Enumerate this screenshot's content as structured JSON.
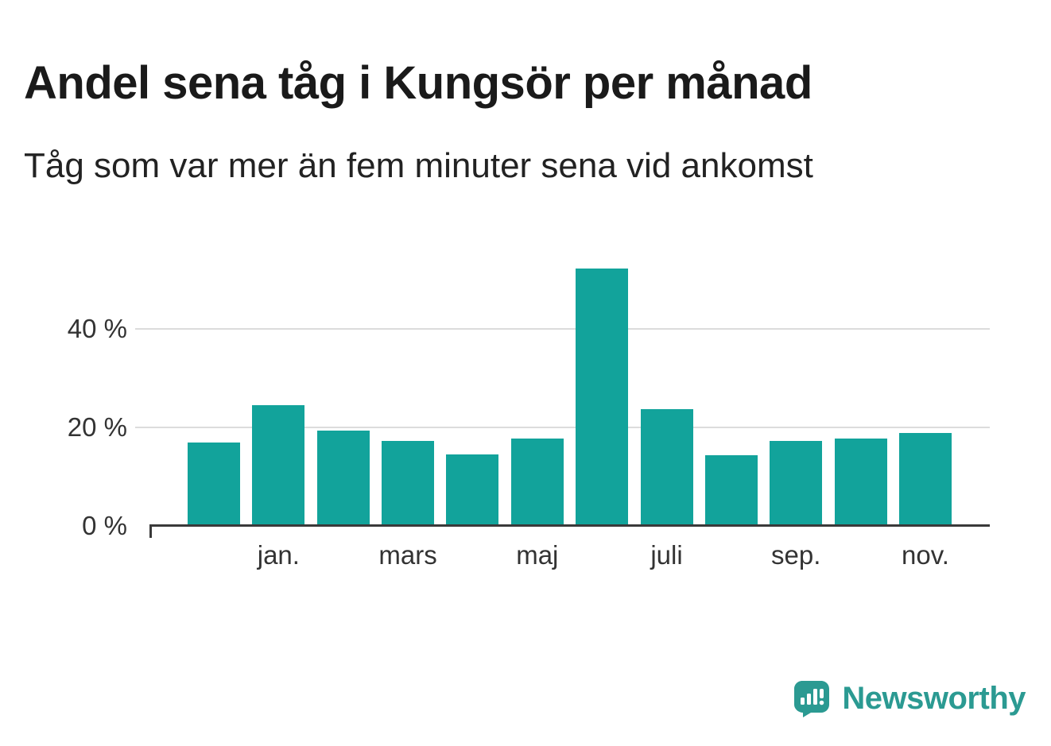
{
  "brand": {
    "name": "Newsworthy",
    "color": "#2b9a92"
  },
  "colors": {
    "bar": "#12a39b",
    "grid": "#dcdcdc",
    "axis": "#3a3a3a",
    "title_text": "#1a1a1a",
    "subtitle_text": "#222222",
    "axis_text": "#333333",
    "background": "#ffffff"
  },
  "chart_data": {
    "type": "bar",
    "title": "Andel sena tåg i Kungsör per månad",
    "subtitle": "Tåg som var mer än fem minuter sena vid ankomst",
    "values": [
      17.0,
      24.6,
      19.4,
      17.2,
      14.6,
      17.7,
      52.3,
      23.7,
      14.3,
      17.2,
      17.8,
      18.9
    ],
    "x_tick_labels": [
      "",
      "jan.",
      "",
      "mars",
      "",
      "maj",
      "",
      "juli",
      "",
      "sep.",
      "",
      "nov."
    ],
    "unit": "%",
    "yticks": [
      0,
      20,
      40
    ],
    "ytick_labels": [
      "0 %",
      "20 %",
      "40 %"
    ],
    "ylim": [
      0,
      59.7
    ],
    "grid": "horizontal",
    "legend": "none",
    "bar_color": "#12a39b"
  }
}
